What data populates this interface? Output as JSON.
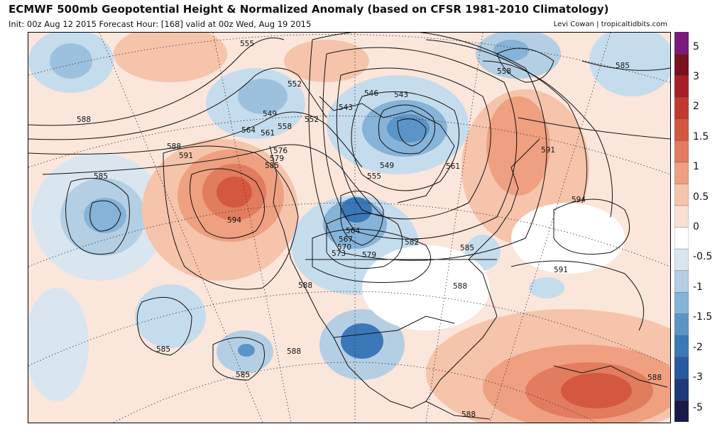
{
  "header": {
    "title": "ECMWF 500mb Geopotential Height & Normalized Anomaly (based on CFSR 1981-2010 Climatology)",
    "subtitle": "Init: 00z Aug 12 2015   Forecast Hour: [168]   valid at 00z Wed, Aug 19 2015",
    "credit": "Levi Cowan | tropicaltidbits.com"
  },
  "colorbar": {
    "ticks": [
      "5",
      "3",
      "2",
      "1.5",
      "1",
      "0.5",
      "0",
      "-0.5",
      "-1",
      "-1.5",
      "-2",
      "-3",
      "-5"
    ],
    "colors": [
      "#1a1a4a",
      "#1f3a7a",
      "#2a5aa0",
      "#3b78b8",
      "#5b95c8",
      "#86b3d8",
      "#b4cfe4",
      "#d9e6f0",
      "#ffffff",
      "#fbe1d3",
      "#f5c4ab",
      "#eea081",
      "#e27c5e",
      "#d4583f",
      "#c23a2f",
      "#a82025",
      "#7a1020",
      "#7a1a7a"
    ]
  },
  "contour_labels": [
    {
      "id": "555",
      "text": "555"
    },
    {
      "id": "552a",
      "text": "552"
    },
    {
      "id": "549a",
      "text": "549"
    },
    {
      "id": "564a",
      "text": "564"
    },
    {
      "id": "561a",
      "text": "561"
    },
    {
      "id": "558a",
      "text": "558"
    },
    {
      "id": "552b",
      "text": "552"
    },
    {
      "id": "546",
      "text": "546"
    },
    {
      "id": "543a",
      "text": "543"
    },
    {
      "id": "543b",
      "text": "543"
    },
    {
      "id": "549b",
      "text": "549"
    },
    {
      "id": "555b",
      "text": "555"
    },
    {
      "id": "561b",
      "text": "561"
    },
    {
      "id": "558b",
      "text": "558"
    },
    {
      "id": "585a",
      "text": "585"
    },
    {
      "id": "588a",
      "text": "588"
    },
    {
      "id": "588b",
      "text": "588"
    },
    {
      "id": "591a",
      "text": "591"
    },
    {
      "id": "576",
      "text": "576"
    },
    {
      "id": "579a",
      "text": "579"
    },
    {
      "id": "585b",
      "text": "585"
    },
    {
      "id": "591b",
      "text": "591"
    },
    {
      "id": "585c",
      "text": "585"
    },
    {
      "id": "594a",
      "text": "594"
    },
    {
      "id": "594b",
      "text": "594"
    },
    {
      "id": "564b",
      "text": "564"
    },
    {
      "id": "567",
      "text": "567"
    },
    {
      "id": "570",
      "text": "570"
    },
    {
      "id": "573",
      "text": "573"
    },
    {
      "id": "579b",
      "text": "579"
    },
    {
      "id": "582",
      "text": "582"
    },
    {
      "id": "585d",
      "text": "585"
    },
    {
      "id": "588c",
      "text": "588"
    },
    {
      "id": "591c",
      "text": "591"
    },
    {
      "id": "588d",
      "text": "588"
    },
    {
      "id": "585e",
      "text": "585"
    },
    {
      "id": "588e",
      "text": "588"
    },
    {
      "id": "585f",
      "text": "585"
    },
    {
      "id": "588f",
      "text": "588"
    },
    {
      "id": "588g",
      "text": "588"
    }
  ]
}
